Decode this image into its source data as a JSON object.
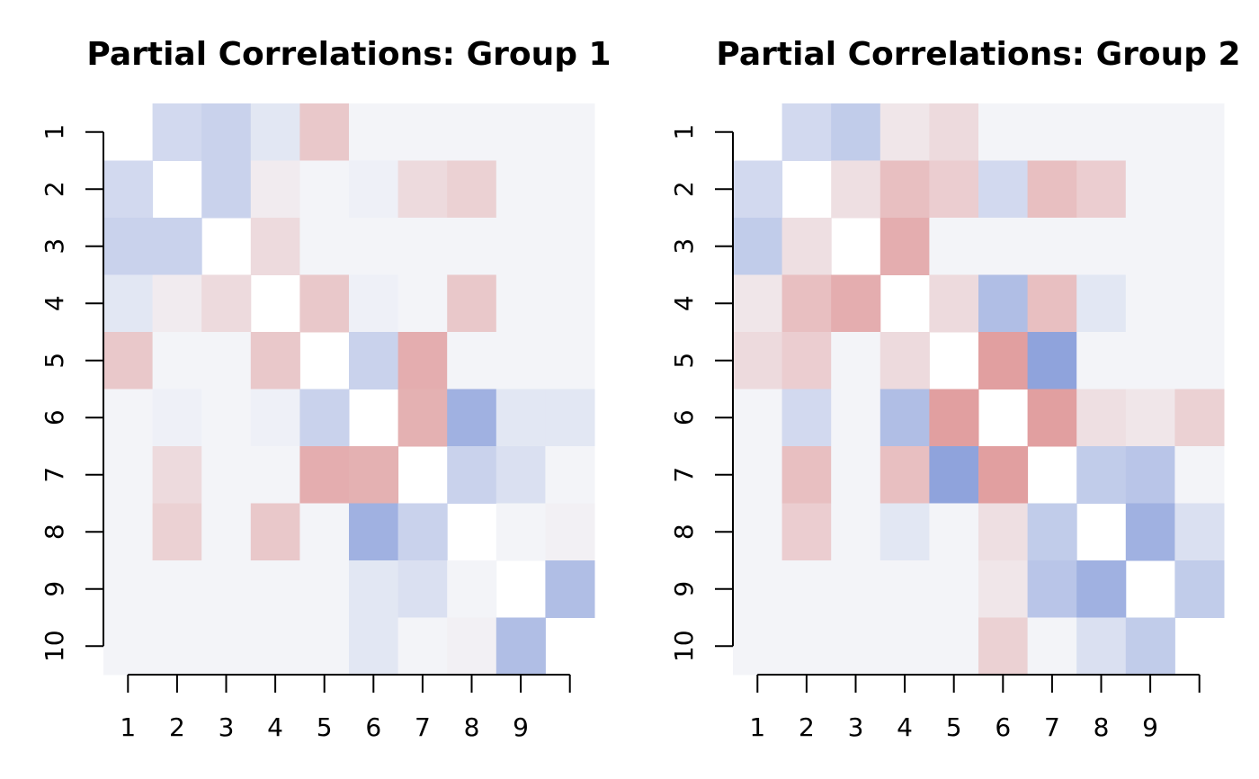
{
  "chart_data": [
    {
      "type": "heatmap",
      "title": "Partial Correlations: Group 1",
      "categories": [
        "1",
        "2",
        "3",
        "4",
        "5",
        "6",
        "7",
        "8",
        "9",
        null
      ],
      "y_categories": [
        "1",
        "2",
        "3",
        "4",
        "5",
        "6",
        "7",
        "8",
        "9",
        "10"
      ],
      "values": [
        [
          null,
          0.2,
          0.25,
          0.1,
          -0.25,
          0,
          0,
          0,
          0,
          0
        ],
        [
          0.2,
          null,
          0.25,
          -0.05,
          0,
          0.03,
          -0.15,
          -0.2,
          0,
          0
        ],
        [
          0.25,
          0.25,
          null,
          -0.15,
          0,
          0,
          0,
          0,
          0,
          0
        ],
        [
          0.1,
          -0.05,
          -0.15,
          null,
          -0.25,
          0.03,
          0,
          -0.25,
          0,
          0
        ],
        [
          -0.25,
          0,
          0,
          -0.25,
          null,
          0.25,
          -0.4,
          0,
          0,
          0
        ],
        [
          0,
          0.03,
          0,
          0.03,
          0.25,
          null,
          -0.38,
          0.5,
          0.1,
          0.1
        ],
        [
          0,
          -0.15,
          0,
          0,
          -0.4,
          -0.38,
          null,
          0.25,
          0.15,
          0
        ],
        [
          0,
          -0.2,
          0,
          -0.25,
          0,
          0.5,
          0.25,
          null,
          0,
          -0.02
        ],
        [
          0,
          0,
          0,
          0,
          0,
          0.1,
          0.15,
          0,
          null,
          0.4
        ],
        [
          0,
          0,
          0,
          0,
          0,
          0.1,
          0,
          -0.02,
          0.4,
          null
        ]
      ],
      "zlim": [
        -0.6,
        0.6
      ],
      "colors": [
        "#dc8a8a",
        "#f3f4f8",
        "#8fa3dc"
      ]
    },
    {
      "type": "heatmap",
      "title": "Partial Correlations: Group 2",
      "categories": [
        "1",
        "2",
        "3",
        "4",
        "5",
        "6",
        "7",
        "8",
        "9",
        null
      ],
      "y_categories": [
        "1",
        "2",
        "3",
        "4",
        "5",
        "6",
        "7",
        "8",
        "9",
        "10"
      ],
      "values": [
        [
          null,
          0.2,
          0.3,
          -0.08,
          -0.15,
          0,
          0,
          0,
          0,
          0
        ],
        [
          0.2,
          null,
          -0.12,
          -0.3,
          -0.22,
          0.2,
          -0.3,
          -0.22,
          0,
          0
        ],
        [
          0.3,
          -0.12,
          null,
          -0.4,
          0,
          0,
          0,
          0,
          0,
          0
        ],
        [
          -0.08,
          -0.3,
          -0.4,
          null,
          -0.15,
          0.4,
          -0.3,
          0.1,
          0,
          0
        ],
        [
          -0.15,
          -0.22,
          0,
          -0.15,
          null,
          -0.48,
          0.6,
          0,
          0,
          0
        ],
        [
          0,
          0.2,
          0,
          0.4,
          -0.48,
          null,
          -0.48,
          -0.12,
          -0.08,
          -0.2
        ],
        [
          0,
          -0.3,
          0,
          -0.3,
          0.6,
          -0.48,
          null,
          0.3,
          0.35,
          0
        ],
        [
          0,
          -0.22,
          0,
          0.1,
          0,
          -0.12,
          0.3,
          null,
          0.5,
          0.15
        ],
        [
          0,
          0,
          0,
          0,
          0,
          -0.08,
          0.35,
          0.5,
          null,
          0.3
        ],
        [
          0,
          0,
          0,
          0,
          0,
          -0.2,
          0,
          0.15,
          0.3,
          null
        ]
      ],
      "zlim": [
        -0.6,
        0.6
      ],
      "colors": [
        "#dc8a8a",
        "#f3f4f8",
        "#8fa3dc"
      ]
    }
  ]
}
